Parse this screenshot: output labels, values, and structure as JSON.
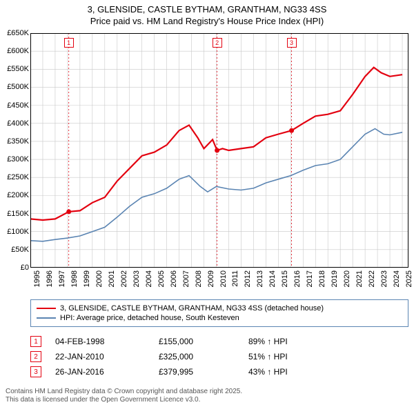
{
  "title_line1": "3, GLENSIDE, CASTLE BYTHAM, GRANTHAM, NG33 4SS",
  "title_line2": "Price paid vs. HM Land Registry's House Price Index (HPI)",
  "chart": {
    "type": "line",
    "background_color": "#ffffff",
    "grid_color": "#c8c8c8",
    "axis_color": "#000000",
    "x_min": 1995,
    "x_max": 2025.5,
    "x_ticks": [
      1995,
      1996,
      1997,
      1998,
      1999,
      2000,
      2001,
      2002,
      2003,
      2004,
      2005,
      2006,
      2007,
      2008,
      2009,
      2010,
      2011,
      2012,
      2013,
      2014,
      2015,
      2016,
      2017,
      2018,
      2019,
      2020,
      2021,
      2022,
      2023,
      2024,
      2025
    ],
    "y_min": 0,
    "y_max": 650000,
    "y_ticks": [
      0,
      50000,
      100000,
      150000,
      200000,
      250000,
      300000,
      350000,
      400000,
      450000,
      500000,
      550000,
      600000,
      650000
    ],
    "y_tick_labels": [
      "£0",
      "£50K",
      "£100K",
      "£150K",
      "£200K",
      "£250K",
      "£300K",
      "£350K",
      "£400K",
      "£450K",
      "£500K",
      "£550K",
      "£600K",
      "£650K"
    ],
    "series_property": {
      "color": "#e3000f",
      "line_width": 2.2,
      "points": [
        [
          1995,
          135000
        ],
        [
          1996,
          132000
        ],
        [
          1997,
          135000
        ],
        [
          1998.1,
          155000
        ],
        [
          1999,
          158000
        ],
        [
          2000,
          180000
        ],
        [
          2001,
          195000
        ],
        [
          2002,
          240000
        ],
        [
          2003,
          275000
        ],
        [
          2004,
          310000
        ],
        [
          2005,
          320000
        ],
        [
          2006,
          340000
        ],
        [
          2007,
          380000
        ],
        [
          2007.8,
          395000
        ],
        [
          2008.5,
          360000
        ],
        [
          2009,
          330000
        ],
        [
          2009.7,
          355000
        ],
        [
          2010.06,
          325000
        ],
        [
          2010.5,
          330000
        ],
        [
          2011,
          325000
        ],
        [
          2012,
          330000
        ],
        [
          2013,
          335000
        ],
        [
          2014,
          360000
        ],
        [
          2015,
          370000
        ],
        [
          2016.07,
          379995
        ],
        [
          2017,
          400000
        ],
        [
          2018,
          420000
        ],
        [
          2019,
          425000
        ],
        [
          2020,
          435000
        ],
        [
          2021,
          480000
        ],
        [
          2022,
          530000
        ],
        [
          2022.7,
          555000
        ],
        [
          2023.3,
          540000
        ],
        [
          2024,
          530000
        ],
        [
          2025,
          535000
        ]
      ]
    },
    "series_hpi": {
      "color": "#5a84b2",
      "line_width": 1.6,
      "points": [
        [
          1995,
          75000
        ],
        [
          1996,
          73000
        ],
        [
          1997,
          78000
        ],
        [
          1998,
          82000
        ],
        [
          1999,
          88000
        ],
        [
          2000,
          100000
        ],
        [
          2001,
          112000
        ],
        [
          2002,
          140000
        ],
        [
          2003,
          170000
        ],
        [
          2004,
          195000
        ],
        [
          2005,
          205000
        ],
        [
          2006,
          220000
        ],
        [
          2007,
          245000
        ],
        [
          2007.8,
          255000
        ],
        [
          2008.7,
          225000
        ],
        [
          2009.3,
          210000
        ],
        [
          2010,
          225000
        ],
        [
          2011,
          218000
        ],
        [
          2012,
          215000
        ],
        [
          2013,
          220000
        ],
        [
          2014,
          235000
        ],
        [
          2015,
          245000
        ],
        [
          2016,
          255000
        ],
        [
          2017,
          270000
        ],
        [
          2018,
          283000
        ],
        [
          2019,
          288000
        ],
        [
          2020,
          300000
        ],
        [
          2021,
          335000
        ],
        [
          2022,
          370000
        ],
        [
          2022.8,
          385000
        ],
        [
          2023.5,
          370000
        ],
        [
          2024,
          368000
        ],
        [
          2025,
          375000
        ]
      ]
    },
    "markers": [
      {
        "n": "1",
        "x": 1998.1,
        "color": "#e3000f"
      },
      {
        "n": "2",
        "x": 2010.06,
        "color": "#e3000f"
      },
      {
        "n": "3",
        "x": 2016.07,
        "color": "#e3000f"
      }
    ]
  },
  "legend": {
    "items": [
      {
        "color": "#e3000f",
        "width": 2.5,
        "label": "3, GLENSIDE, CASTLE BYTHAM, GRANTHAM, NG33 4SS (detached house)"
      },
      {
        "color": "#5a84b2",
        "width": 1.6,
        "label": "HPI: Average price, detached house, South Kesteven"
      }
    ]
  },
  "sales": [
    {
      "n": "1",
      "date": "04-FEB-1998",
      "price": "£155,000",
      "pct": "89% ↑ HPI",
      "color": "#e3000f"
    },
    {
      "n": "2",
      "date": "22-JAN-2010",
      "price": "£325,000",
      "pct": "51% ↑ HPI",
      "color": "#e3000f"
    },
    {
      "n": "3",
      "date": "26-JAN-2016",
      "price": "£379,995",
      "pct": "43% ↑ HPI",
      "color": "#e3000f"
    }
  ],
  "footer_line1": "Contains HM Land Registry data © Crown copyright and database right 2025.",
  "footer_line2": "This data is licensed under the Open Government Licence v3.0."
}
